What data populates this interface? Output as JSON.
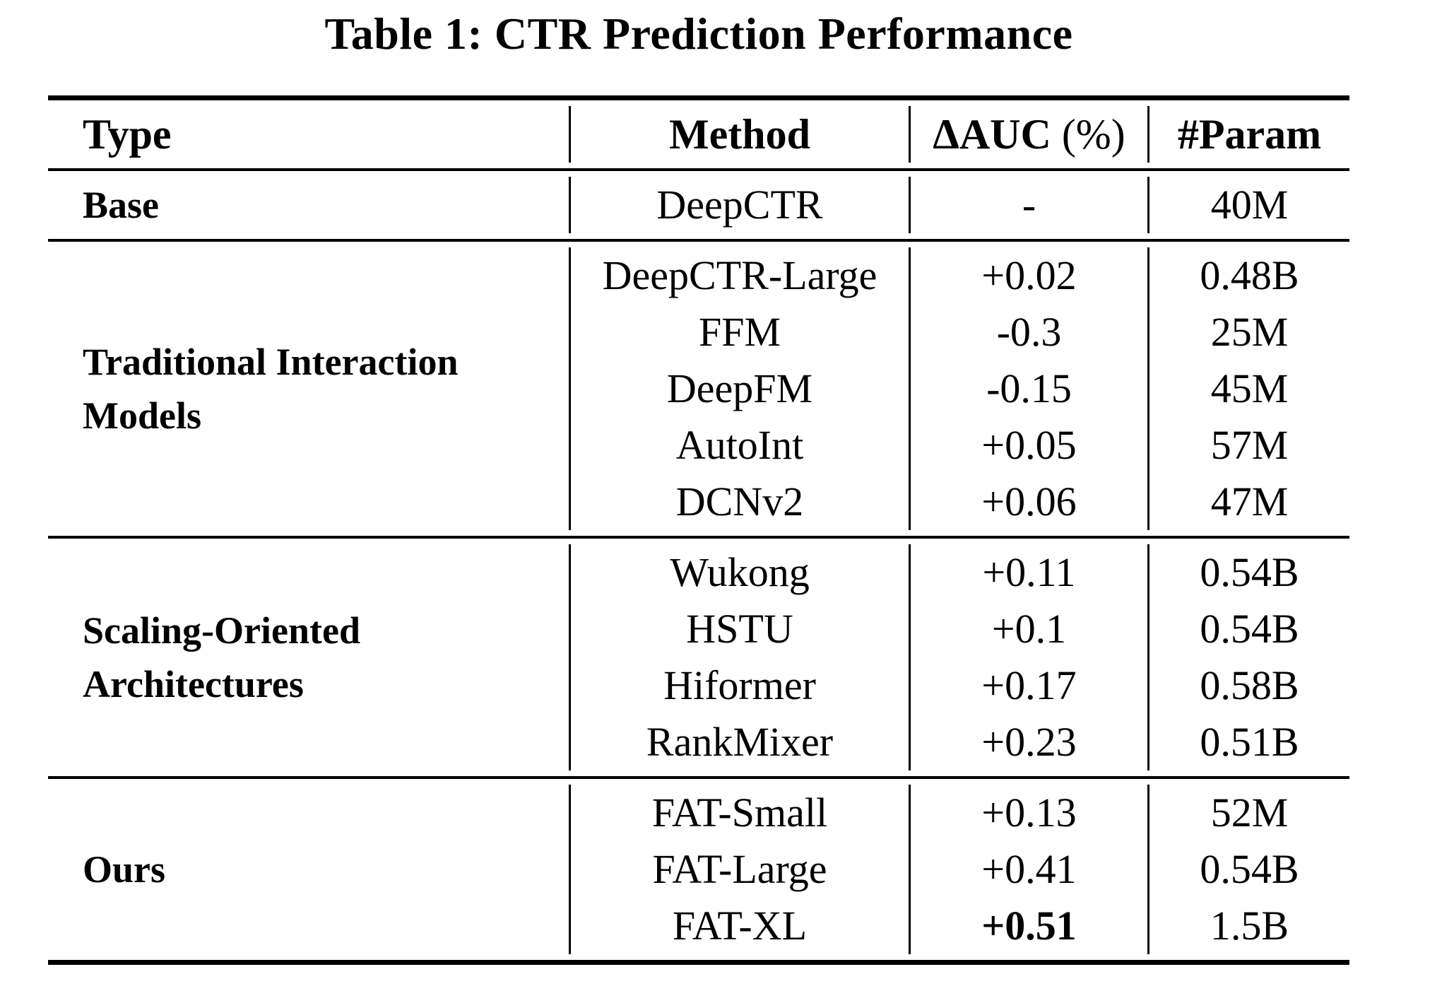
{
  "caption": "Table 1: CTR Prediction Performance",
  "columns": {
    "type": "Type",
    "method": "Method",
    "auc": "ΔAUC",
    "auc_unit": " (%)",
    "param": "#Param"
  },
  "groups": [
    {
      "label": "Base",
      "rows": [
        {
          "method": "DeepCTR",
          "auc": "-",
          "param": "40M"
        }
      ]
    },
    {
      "label": "Traditional Interaction Models",
      "rows": [
        {
          "method": "DeepCTR-Large",
          "auc": "+0.02",
          "param": "0.48B"
        },
        {
          "method": "FFM",
          "auc": "-0.3",
          "param": "25M"
        },
        {
          "method": "DeepFM",
          "auc": "-0.15",
          "param": "45M"
        },
        {
          "method": "AutoInt",
          "auc": "+0.05",
          "param": "57M"
        },
        {
          "method": "DCNv2",
          "auc": "+0.06",
          "param": "47M"
        }
      ]
    },
    {
      "label": "Scaling-Oriented Architectures",
      "rows": [
        {
          "method": "Wukong",
          "auc": "+0.11",
          "param": "0.54B"
        },
        {
          "method": "HSTU",
          "auc": "+0.1",
          "param": "0.54B"
        },
        {
          "method": "Hiformer",
          "auc": "+0.17",
          "param": "0.58B"
        },
        {
          "method": "RankMixer",
          "auc": "+0.23",
          "param": "0.51B"
        }
      ]
    },
    {
      "label": "Ours",
      "rows": [
        {
          "method": "FAT-Small",
          "auc": "+0.13",
          "param": "52M"
        },
        {
          "method": "FAT-Large",
          "auc": "+0.41",
          "param": "0.54B"
        },
        {
          "method": "FAT-XL",
          "auc": "+0.51",
          "param": "1.5B",
          "auc_emphasis": "bold"
        }
      ]
    }
  ]
}
